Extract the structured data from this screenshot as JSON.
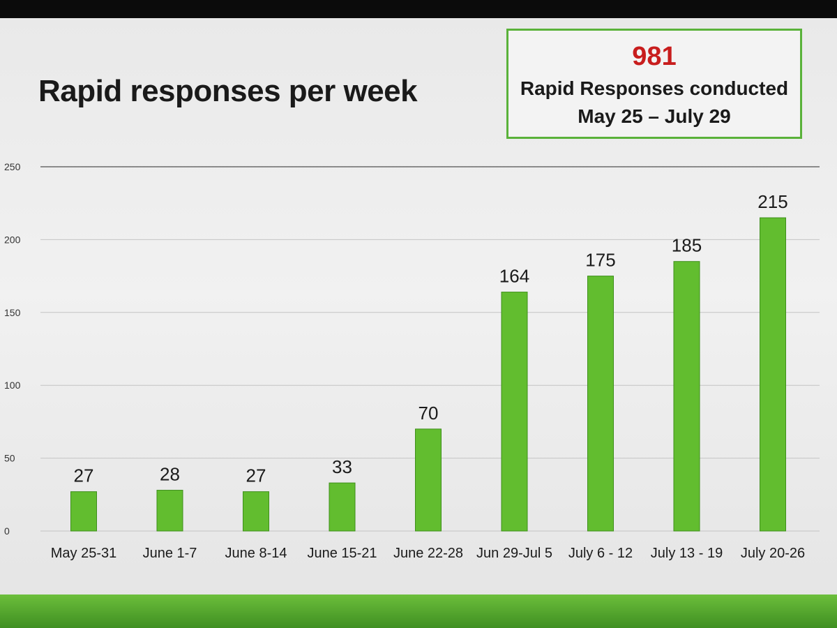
{
  "slide": {
    "title": "Rapid responses per week",
    "summary": {
      "number": "981",
      "line1": "Rapid Responses conducted",
      "line2": "May 25 – July 29"
    }
  },
  "colors": {
    "bar": "#62bd2f",
    "bar_edge": "#3e8f1b",
    "number": "#c81d1d",
    "box_border": "#5ab23a",
    "footer": "#4fa52a"
  },
  "chart_data": {
    "type": "bar",
    "title": "Rapid responses per week",
    "categories": [
      "May 25-31",
      "June 1-7",
      "June 8-14",
      "June 15-21",
      "June 22-28",
      "Jun 29-Jul 5",
      "July 6 - 12",
      "July 13 - 19",
      "July 20-26"
    ],
    "values": [
      27,
      28,
      27,
      33,
      70,
      164,
      175,
      185,
      215
    ],
    "ylim": [
      0,
      250
    ],
    "yticks": [
      0,
      50,
      100,
      150,
      200,
      250
    ],
    "grid": true,
    "data_labels": true
  }
}
